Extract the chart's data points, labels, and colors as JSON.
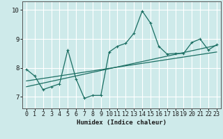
{
  "xlabel": "Humidex (Indice chaleur)",
  "ylabel": "",
  "bg_color": "#ceeaea",
  "grid_color": "#ffffff",
  "line_color": "#1a6e62",
  "xlim": [
    -0.5,
    23.5
  ],
  "ylim": [
    6.6,
    10.3
  ],
  "xticks": [
    0,
    1,
    2,
    3,
    4,
    5,
    6,
    7,
    8,
    9,
    10,
    11,
    12,
    13,
    14,
    15,
    16,
    17,
    18,
    19,
    20,
    21,
    22,
    23
  ],
  "yticks": [
    7,
    8,
    9,
    10
  ],
  "jagged_x": [
    0,
    1,
    2,
    3,
    4,
    5,
    6,
    7,
    8,
    9,
    10,
    11,
    12,
    13,
    14,
    15,
    16,
    17,
    18,
    19,
    20,
    21,
    22,
    23
  ],
  "jagged_y": [
    7.95,
    7.72,
    7.25,
    7.35,
    7.45,
    8.62,
    7.62,
    6.95,
    7.05,
    7.05,
    8.55,
    8.75,
    8.85,
    9.2,
    9.97,
    9.55,
    8.75,
    8.48,
    8.5,
    8.5,
    8.88,
    9.0,
    8.62,
    8.8
  ],
  "line1_x": [
    0,
    23
  ],
  "line1_y": [
    7.55,
    8.55
  ],
  "line2_x": [
    0,
    23
  ],
  "line2_y": [
    7.35,
    8.78
  ],
  "xlabel_fontsize": 6.5,
  "tick_fontsize": 6.0
}
